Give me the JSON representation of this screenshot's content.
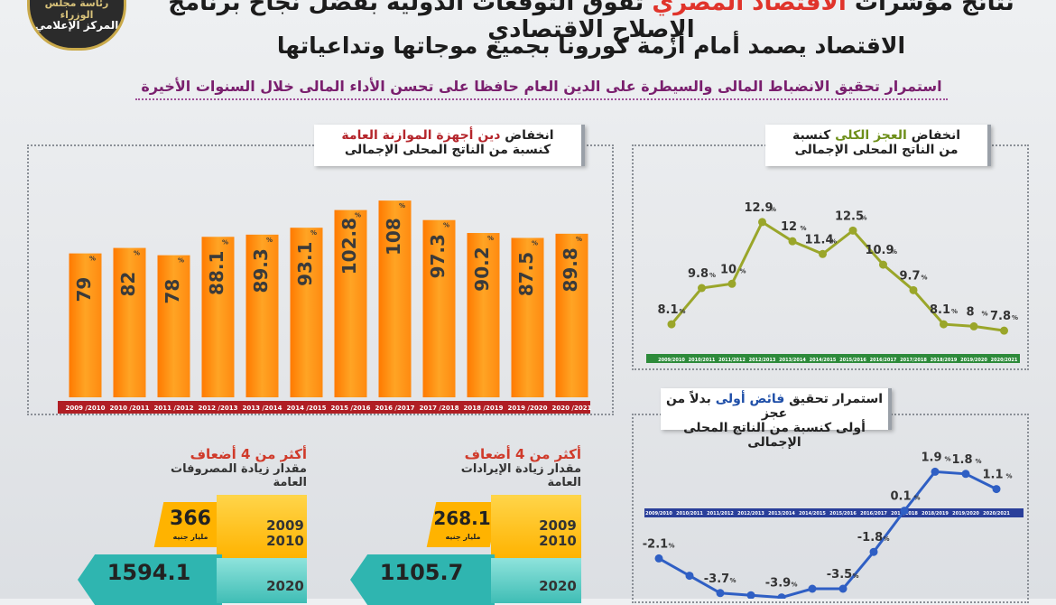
{
  "logo": {
    "line1": "رئاسة مجلس الوزراء",
    "line2": "المركز الإعلامي"
  },
  "header": {
    "line1_pre": "نتائج مؤشرات ",
    "line1_highlight": "الاقتصاد المصري",
    "line1_post": " تفوق التوقعات الدولية بفضل نجاح برنامج الإصلاح الاقتصادي",
    "line2": "الاقتصاد يصمد أمام أزمة كورونا بجميع موجاتها وتداعياتها",
    "line3": "استمرار تحقيق الانضباط المالى والسيطرة على الدين العام حافظا على تحسن الأداء المالى خلال السنوات الأخيرة"
  },
  "debt_panel": {
    "label_pre": "انخفاض ",
    "label_highlight": "دين أجهزة الموازنة العامة",
    "label_line2": "كنسبة من الناتج المحلى الإجمالى"
  },
  "deficit_panel": {
    "label_pre": "انخفاض ",
    "label_highlight": "العجز الكلى",
    "label_post": " كنسبة",
    "label_line2": "من الناتج المحلى الإجمالى"
  },
  "primary_panel": {
    "label_pre": "استمرار تحقيق ",
    "label_highlight": "فائض أولى",
    "label_post": " بدلاً من عجز",
    "label_line2": "أولى كنسبة من الناتج المحلى الإجمالى"
  },
  "expenditure_box": {
    "title": "أكثر من 4 أضعاف",
    "subtitle": "مقدار زيادة المصروفات العامة",
    "value_2009": "366",
    "unit": "مليار جنيه",
    "year_a1": "2009",
    "year_a2": "2010",
    "value_2020": "1594.1",
    "year_b1": "2020"
  },
  "revenue_box": {
    "title": "أكثر من 4 أضعاف",
    "subtitle": "مقدار زيادة الإيرادات العامة",
    "value_2009": "268.1",
    "unit": "مليار جنيه",
    "year_a1": "2009",
    "year_a2": "2010",
    "value_2020": "1105.7",
    "year_b1": "2020"
  },
  "chart_data": [
    {
      "type": "bar",
      "categories": [
        "2009 /2010",
        "2010 /2011",
        "2011 /2012",
        "2012 /2013",
        "2013 /2014",
        "2014 /2015",
        "2015 /2016",
        "2016 /2017",
        "2017 /2018",
        "2018 /2019",
        "2019 /2020",
        "2020 /2021"
      ],
      "values": [
        79,
        82,
        78,
        88.1,
        89.3,
        93.1,
        102.8,
        108,
        97.3,
        90.2,
        87.5,
        89.8
      ],
      "labels": [
        "79",
        "82",
        "78",
        "88.1",
        "89.3",
        "93.1",
        "102.8",
        "108",
        "97.3",
        "90.2",
        "87.5",
        "89.8"
      ],
      "unit": "%",
      "ylim": [
        0,
        115
      ],
      "colors": {
        "bar_top": "#ffa424",
        "bar_bottom": "#ff7a00",
        "axis": "#b01e24"
      }
    },
    {
      "type": "line",
      "categories": [
        "2009/2010",
        "2010/2011",
        "2011/2012",
        "2012/2013",
        "2013/2014",
        "2014/2015",
        "2015/2016",
        "2016/2017",
        "2017/2018",
        "2018/2019",
        "2019/2020",
        "2020/2021"
      ],
      "values": [
        8.1,
        9.8,
        10,
        12.9,
        12,
        11.4,
        12.5,
        10.9,
        9.7,
        8.1,
        8,
        7.8
      ],
      "labels": [
        "8.1",
        "9.8",
        "10",
        "12.9",
        "12",
        "11.4",
        "12.5",
        "10.9",
        "9.7",
        "8.1",
        "8",
        "7.8"
      ],
      "unit": "%",
      "ylim": [
        7,
        14
      ],
      "colors": {
        "line": "#9aa62a",
        "axis": "#2d8a3a"
      }
    },
    {
      "type": "line",
      "categories": [
        "2009/2010",
        "2010/2011",
        "2011/2012",
        "2012/2013",
        "2013/2014",
        "2014/2015",
        "2015/2016",
        "2016/2017",
        "2017/2018",
        "2018/2019",
        "2019/2020",
        "2020/2021"
      ],
      "values": [
        -2.1,
        -2.9,
        -3.7,
        -3.8,
        -3.9,
        -3.5,
        -3.5,
        -1.8,
        0.1,
        1.9,
        1.8,
        1.1
      ],
      "labels": [
        "-2.1",
        "",
        "-3.7",
        "",
        "-3.9",
        "",
        "-3.5",
        "-1.8",
        "0.1",
        "1.9",
        "1.8",
        "1.1"
      ],
      "unit": "%",
      "ylim": [
        -4.2,
        2.6
      ],
      "colors": {
        "line": "#2f5fc4",
        "axis": "#2a3f9a"
      }
    }
  ]
}
